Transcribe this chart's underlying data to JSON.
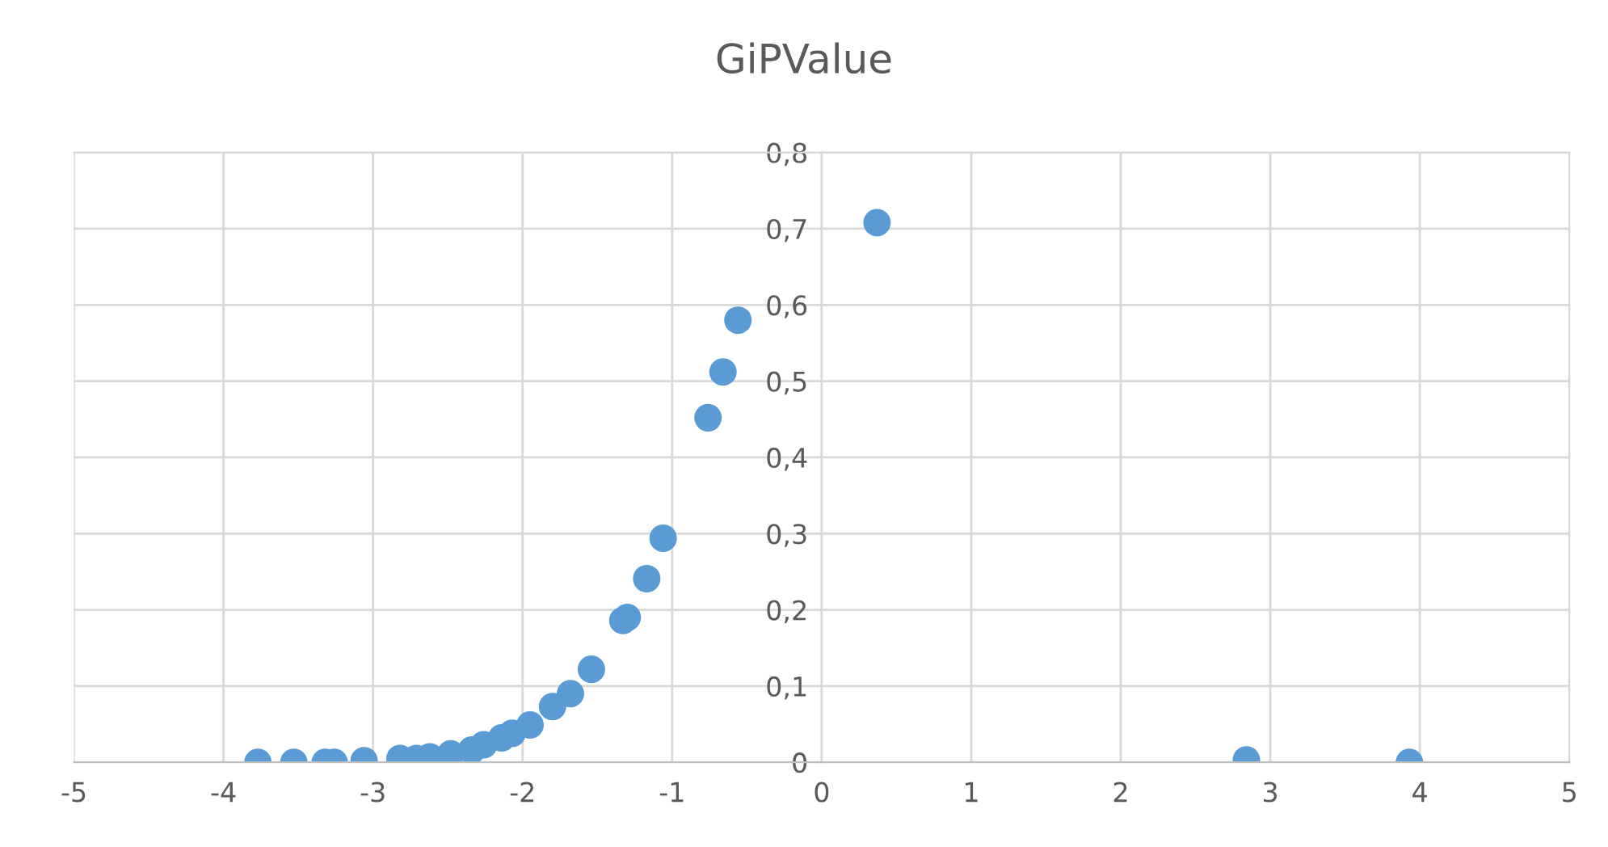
{
  "chart_data": {
    "type": "scatter",
    "title": "GiPValue",
    "x": [
      -3.77,
      -3.53,
      -3.32,
      -3.26,
      -3.06,
      -2.82,
      -2.71,
      -2.62,
      -2.48,
      -2.34,
      -2.26,
      -2.14,
      -2.07,
      -1.95,
      -1.8,
      -1.68,
      -1.54,
      -1.33,
      -1.3,
      -1.17,
      -1.06,
      -0.76,
      -0.66,
      -0.56,
      0.37,
      2.84,
      3.93
    ],
    "series": [
      {
        "color": "#5b9bd5",
        "values": [
          0,
          0,
          0,
          0,
          0.002,
          0.005,
          0.005,
          0.007,
          0.011,
          0.016,
          0.023,
          0.032,
          0.038,
          0.049,
          0.073,
          0.09,
          0.122,
          0.186,
          0.19,
          0.241,
          0.294,
          0.452,
          0.512,
          0.58,
          0.708,
          0.003,
          0
        ]
      }
    ],
    "xlim": [
      -5,
      5
    ],
    "xticks": [
      -5,
      -4,
      -3,
      -2,
      -1,
      0,
      1,
      2,
      3,
      4,
      5
    ],
    "ylim": [
      0,
      0.8
    ],
    "yticks": [
      {
        "value": 0,
        "label": "0"
      },
      {
        "value": 0.1,
        "label": "0,1"
      },
      {
        "value": 0.2,
        "label": "0,2"
      },
      {
        "value": 0.3,
        "label": "0,3"
      },
      {
        "value": 0.4,
        "label": "0,4"
      },
      {
        "value": 0.5,
        "label": "0,5"
      },
      {
        "value": 0.6,
        "label": "0,6"
      },
      {
        "value": 0.7,
        "label": "0,7"
      },
      {
        "value": 0.8,
        "label": "0,8"
      }
    ],
    "grid": true,
    "marker": "circle"
  }
}
